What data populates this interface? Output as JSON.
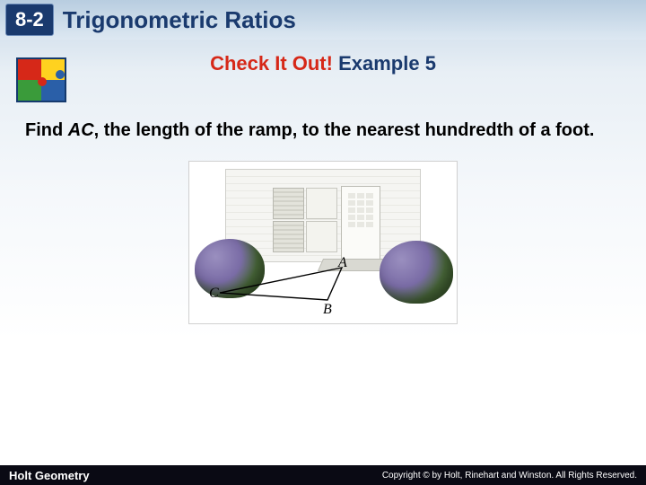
{
  "lesson": {
    "number": "8-2",
    "title": "Trigonometric Ratios"
  },
  "subtitle": {
    "lead": "Check It Out!",
    "example": "Example 5"
  },
  "problem": {
    "prefix": "Find ",
    "var": "AC",
    "rest": ", the length of the ramp, to the nearest hundredth of a foot."
  },
  "figure": {
    "points": {
      "A": "A",
      "B": "B",
      "C": "C"
    },
    "ramp": {
      "A": [
        140,
        6
      ],
      "B": [
        124,
        42
      ],
      "C": [
        4,
        34
      ],
      "stroke": "#000000",
      "width": 1.4
    },
    "colors": {
      "bush_highlight": "#9a8fbf",
      "bush_mid": "#7a6ca6",
      "bush_green": "#4a6a3a",
      "wall": "#f5f5f2"
    }
  },
  "footer": {
    "publisher": "Holt Geometry",
    "copyright": "Copyright © by Holt, Rinehart and Winston. All Rights Reserved."
  },
  "palette": {
    "brand_blue": "#1a3a6e",
    "accent_red": "#d62818"
  }
}
